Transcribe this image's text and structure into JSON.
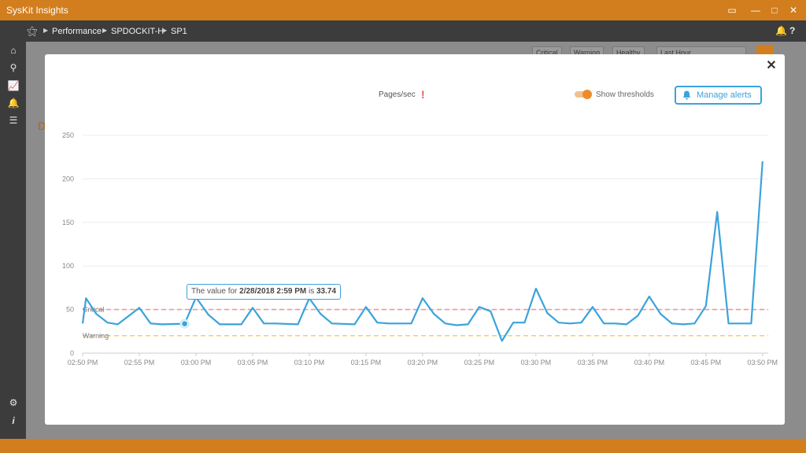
{
  "app": {
    "title": "SysKit Insights"
  },
  "window_controls": [
    {
      "name": "feedback-icon",
      "glyph": "▭"
    },
    {
      "name": "minimize-icon",
      "glyph": "—"
    },
    {
      "name": "maximize-icon",
      "glyph": "□"
    },
    {
      "name": "close-window-icon",
      "glyph": "✕"
    }
  ],
  "breadcrumb": [
    "Performance",
    "SPDOCKIT-H",
    "SP1"
  ],
  "nav_right": {
    "bell": "🔔",
    "help": "?"
  },
  "sidebar_icons": [
    "home-icon",
    "search-icon",
    "performance-icon",
    "alerts-icon",
    "list-icon",
    "settings-icon",
    "info-icon"
  ],
  "background": {
    "filters": [
      "Critical",
      "Warning",
      "Healthy"
    ],
    "time_select": "Last Hour",
    "section_letter": "D"
  },
  "modal": {
    "chart_title": "Pages/sec",
    "warning_mark": "!",
    "show_thresholds_label": "Show thresholds",
    "show_thresholds_on": true,
    "manage_alerts_label": "Manage alerts",
    "tooltip": {
      "prefix": "The value for ",
      "date": "2/28/2018 2:59 PM",
      "mid": " is ",
      "value": "33.74"
    }
  },
  "colors": {
    "accent": "#d27e1e",
    "line": "#3aa3dc",
    "critical": "#ee9a9a",
    "warning": "#f0d27a"
  },
  "chart_data": {
    "type": "line",
    "title": "Pages/sec",
    "xlabel": "",
    "ylabel": "",
    "x_ticks": [
      "02:50 PM",
      "02:55 PM",
      "03:00 PM",
      "03:05 PM",
      "03:10 PM",
      "03:15 PM",
      "03:20 PM",
      "03:25 PM",
      "03:30 PM",
      "03:35 PM",
      "03:40 PM",
      "03:45 PM",
      "03:50 PM"
    ],
    "y_ticks": [
      0,
      50,
      100,
      150,
      200,
      250
    ],
    "ylim": [
      0,
      250
    ],
    "xlim_minutes": [
      0,
      60.5
    ],
    "grid": true,
    "thresholds": [
      {
        "name": "Critical",
        "value": 50
      },
      {
        "name": "Warning",
        "value": 20
      }
    ],
    "series": [
      {
        "values": [
          [
            0.0,
            34
          ],
          [
            0.3,
            63
          ],
          [
            1.2,
            45
          ],
          [
            2.2,
            35
          ],
          [
            3.1,
            33
          ],
          [
            5.0,
            52
          ],
          [
            6.0,
            34
          ],
          [
            7.0,
            33
          ],
          [
            9.0,
            33.74
          ],
          [
            10.0,
            64
          ],
          [
            11.1,
            44
          ],
          [
            12.1,
            33
          ],
          [
            14.0,
            33
          ],
          [
            15.0,
            52
          ],
          [
            16.0,
            34
          ],
          [
            17.0,
            34
          ],
          [
            19.0,
            33
          ],
          [
            20.0,
            63
          ],
          [
            21.0,
            45
          ],
          [
            22.0,
            34
          ],
          [
            24.0,
            33
          ],
          [
            25.0,
            53
          ],
          [
            26.0,
            35
          ],
          [
            27.0,
            34
          ],
          [
            29.0,
            34
          ],
          [
            30.0,
            63
          ],
          [
            31.0,
            45
          ],
          [
            32.0,
            34
          ],
          [
            33.0,
            32
          ],
          [
            34.0,
            33
          ],
          [
            35.0,
            53
          ],
          [
            36.0,
            48
          ],
          [
            37.0,
            14
          ],
          [
            38.0,
            35
          ],
          [
            39.0,
            35
          ],
          [
            40.0,
            74
          ],
          [
            41.0,
            46
          ],
          [
            42.0,
            35
          ],
          [
            43.0,
            34
          ],
          [
            44.0,
            35
          ],
          [
            45.0,
            53
          ],
          [
            46.0,
            34
          ],
          [
            47.0,
            34
          ],
          [
            48.0,
            33
          ],
          [
            49.0,
            43
          ],
          [
            50.0,
            65
          ],
          [
            51.0,
            45
          ],
          [
            52.0,
            34
          ],
          [
            53.0,
            33
          ],
          [
            54.0,
            34
          ],
          [
            55.0,
            54
          ],
          [
            56.0,
            162
          ],
          [
            57.0,
            34
          ],
          [
            58.0,
            34
          ],
          [
            59.0,
            34
          ],
          [
            60.0,
            220
          ]
        ]
      }
    ],
    "highlighted_point": {
      "x": 9.0,
      "y": 33.74
    }
  }
}
